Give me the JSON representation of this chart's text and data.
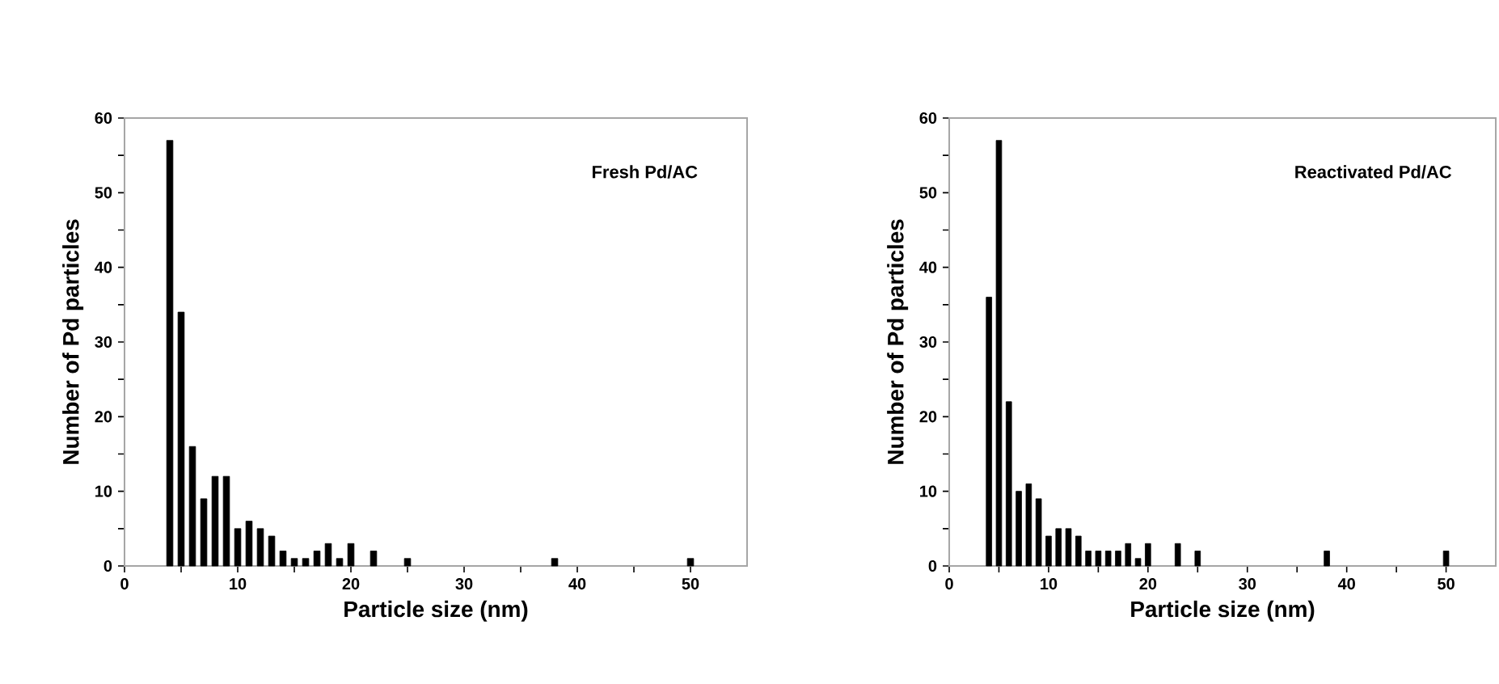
{
  "chart_data": [
    {
      "type": "bar",
      "xlabel": "Particle size (nm)",
      "ylabel": "Number of Pd particles",
      "annotations": [
        "Fresh Pd/AC"
      ],
      "x": [
        4,
        5,
        6,
        7,
        8,
        9,
        10,
        11,
        12,
        13,
        14,
        15,
        16,
        17,
        18,
        19,
        20,
        22,
        25,
        38,
        50
      ],
      "values": [
        57,
        34,
        16,
        9,
        12,
        12,
        5,
        6,
        5,
        4,
        2,
        1,
        1,
        2,
        3,
        1,
        3,
        2,
        1,
        1,
        1
      ],
      "color": "#000000",
      "xlim": [
        0,
        55
      ],
      "ylim": [
        0,
        60
      ],
      "xticks": [
        0,
        {
          "value": 5,
          "label": null
        },
        10,
        {
          "value": 15,
          "label": null
        },
        20,
        {
          "value": 25,
          "label": null
        },
        30,
        {
          "value": 35,
          "label": null
        },
        40,
        {
          "value": 45,
          "label": null
        },
        50
      ],
      "yticks": [
        0,
        {
          "value": 5,
          "label": null
        },
        10,
        {
          "value": 15,
          "label": null
        },
        20,
        {
          "value": 25,
          "label": null
        },
        30,
        {
          "value": 35,
          "label": null
        },
        40,
        {
          "value": 45,
          "label": null
        },
        50,
        {
          "value": 55,
          "label": null
        },
        60
      ]
    },
    {
      "type": "bar",
      "xlabel": "Particle size (nm)",
      "ylabel": "Number of Pd particles",
      "annotations": [
        "Reactivated Pd/AC"
      ],
      "x": [
        4,
        5,
        6,
        7,
        8,
        9,
        10,
        11,
        12,
        13,
        14,
        15,
        16,
        17,
        18,
        19,
        20,
        23,
        25,
        38,
        50
      ],
      "values": [
        36,
        57,
        22,
        10,
        11,
        9,
        4,
        5,
        5,
        4,
        2,
        2,
        2,
        2,
        3,
        1,
        3,
        3,
        2,
        2,
        2
      ],
      "color": "#000000",
      "xlim": [
        0,
        55
      ],
      "ylim": [
        0,
        60
      ],
      "xticks": [
        0,
        {
          "value": 5,
          "label": null
        },
        10,
        {
          "value": 15,
          "label": null
        },
        20,
        {
          "value": 25,
          "label": null
        },
        30,
        {
          "value": 35,
          "label": null
        },
        40,
        {
          "value": 45,
          "label": null
        },
        50
      ],
      "yticks": [
        0,
        {
          "value": 5,
          "label": null
        },
        10,
        {
          "value": 15,
          "label": null
        },
        20,
        {
          "value": 25,
          "label": null
        },
        30,
        {
          "value": 35,
          "label": null
        },
        40,
        {
          "value": 45,
          "label": null
        },
        50,
        {
          "value": 55,
          "label": null
        },
        60
      ]
    }
  ]
}
